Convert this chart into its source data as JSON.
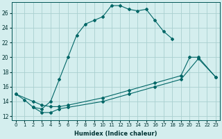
{
  "xlabel": "Humidex (Indice chaleur)",
  "xlim": [
    -0.5,
    23.5
  ],
  "ylim": [
    11.5,
    27.5
  ],
  "xticks": [
    0,
    1,
    2,
    3,
    4,
    5,
    6,
    7,
    8,
    9,
    10,
    11,
    12,
    13,
    14,
    15,
    16,
    17,
    18,
    19,
    20,
    21,
    22,
    23
  ],
  "yticks": [
    12,
    14,
    16,
    18,
    20,
    22,
    24,
    26
  ],
  "background_color": "#d4eeee",
  "grid_color": "#aad0d0",
  "line_color": "#006666",
  "curve1_x": [
    0,
    1,
    2,
    3,
    4,
    5,
    6,
    7,
    8,
    9,
    10,
    11,
    12,
    13,
    14,
    15,
    16,
    17,
    18
  ],
  "curve1_y": [
    15.0,
    14.2,
    13.2,
    13.0,
    14.0,
    17.0,
    20.0,
    23.0,
    24.5,
    25.0,
    25.5,
    27.0,
    27.0,
    26.5,
    26.3,
    26.5,
    25.0,
    23.5,
    22.5
  ],
  "curve2_x": [
    0,
    2,
    3,
    4,
    5,
    6,
    10,
    13,
    16,
    19,
    20,
    21,
    23
  ],
  "curve2_y": [
    15.0,
    14.0,
    13.5,
    13.3,
    13.3,
    13.5,
    14.5,
    15.5,
    16.5,
    17.5,
    20.0,
    20.0,
    17.3
  ],
  "curve3_x": [
    2,
    3,
    4,
    5,
    6,
    10,
    13,
    16,
    19,
    21,
    23
  ],
  "curve3_y": [
    13.2,
    12.5,
    12.5,
    13.0,
    13.2,
    14.0,
    15.0,
    16.0,
    17.0,
    19.8,
    17.3
  ]
}
